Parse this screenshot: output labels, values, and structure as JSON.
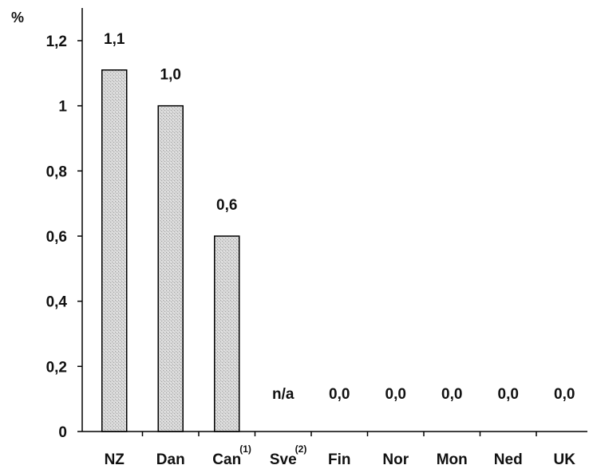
{
  "chart_data": {
    "type": "bar",
    "ylabel": "%",
    "ylim": [
      0,
      1.3
    ],
    "yticks": [
      {
        "value": 0,
        "label": "0"
      },
      {
        "value": 0.2,
        "label": "0,2"
      },
      {
        "value": 0.4,
        "label": "0,4"
      },
      {
        "value": 0.6,
        "label": "0,6"
      },
      {
        "value": 0.8,
        "label": "0,8"
      },
      {
        "value": 1.0,
        "label": "1"
      },
      {
        "value": 1.2,
        "label": "1,2"
      }
    ],
    "categories": [
      {
        "label": "NZ",
        "note": ""
      },
      {
        "label": "Dan",
        "note": ""
      },
      {
        "label": "Can",
        "note": "(1)"
      },
      {
        "label": "Sve",
        "note": "(2)"
      },
      {
        "label": "Fin",
        "note": ""
      },
      {
        "label": "Nor",
        "note": ""
      },
      {
        "label": "Mon",
        "note": ""
      },
      {
        "label": "Ned",
        "note": ""
      },
      {
        "label": "UK",
        "note": ""
      }
    ],
    "values": [
      1.11,
      1.0,
      0.6,
      null,
      0,
      0,
      0,
      0,
      0
    ],
    "data_labels": [
      "1,1",
      "1,0",
      "0,6",
      "n/a",
      "0,0",
      "0,0",
      "0,0",
      "0,0",
      "0,0"
    ],
    "bar_fill": "#cfcfcf",
    "bar_stroke": "#000000",
    "axis_color": "#000000",
    "grid": false,
    "legend": "none"
  }
}
